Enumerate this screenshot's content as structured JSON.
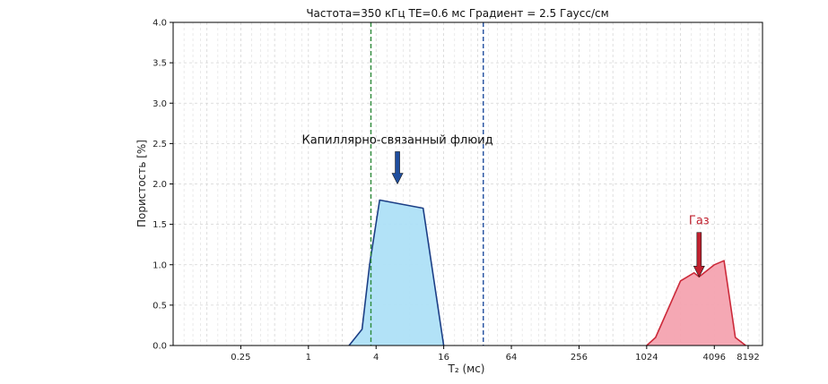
{
  "chart_data": {
    "type": "area",
    "title": "Частота=350 кГц TE=0.6 мс Градиент = 2.5 Гаусс/см",
    "xlabel": "T₂ (мс)",
    "ylabel": "Пористость [%]",
    "xscale": "log2",
    "xlim": [
      0.0625,
      11000
    ],
    "ylim": [
      0,
      4.0
    ],
    "grid": true,
    "x_ticks": [
      0.25,
      1,
      4,
      16,
      64,
      256,
      1024,
      4096,
      8192
    ],
    "x_tick_labels": [
      "0.25",
      "1",
      "4",
      "16",
      "64",
      "256",
      "1024",
      "4096",
      "8192"
    ],
    "y_ticks": [
      0,
      0.5,
      1.0,
      1.5,
      2.0,
      2.5,
      3.0,
      3.5,
      4.0
    ],
    "y_tick_labels": [
      "0.0",
      "0.5",
      "1.0",
      "1.5",
      "2.0",
      "2.5",
      "3.0",
      "3.5",
      "4.0"
    ],
    "series": [
      {
        "color": "#aee0f7",
        "edge_color": "#1c3f86",
        "points": [
          [
            2.3,
            0
          ],
          [
            3.0,
            0.2
          ],
          [
            3.5,
            1.0
          ],
          [
            4.3,
            1.8
          ],
          [
            10.5,
            1.7
          ],
          [
            16,
            0
          ]
        ]
      },
      {
        "color": "#f4a3b0",
        "edge_color": "#cc2a3a",
        "points": [
          [
            1024,
            0
          ],
          [
            1230,
            0.1
          ],
          [
            2048,
            0.8
          ],
          [
            2700,
            0.9
          ],
          [
            3000,
            0.85
          ],
          [
            4096,
            1.0
          ],
          [
            5000,
            1.05
          ],
          [
            6300,
            0.1
          ],
          [
            7800,
            0
          ]
        ]
      }
    ],
    "vertical_lines": [
      {
        "x": 3.6,
        "color": "#2e8b3a",
        "style": "dashed"
      },
      {
        "x": 36,
        "color": "#1f4e9e",
        "style": "dashed"
      }
    ],
    "annotations": [
      {
        "text": "Капиллярно-связанный флюид",
        "x": 6.2,
        "y": 2.5,
        "arrow_tip_y": 2.0,
        "text_color": "#111111",
        "arrow_color": "#1f4e9e"
      },
      {
        "text": "Газ",
        "x": 3000,
        "y": 1.5,
        "arrow_tip_y": 0.85,
        "text_color": "#c0202e",
        "arrow_color": "#c0202e"
      }
    ]
  }
}
